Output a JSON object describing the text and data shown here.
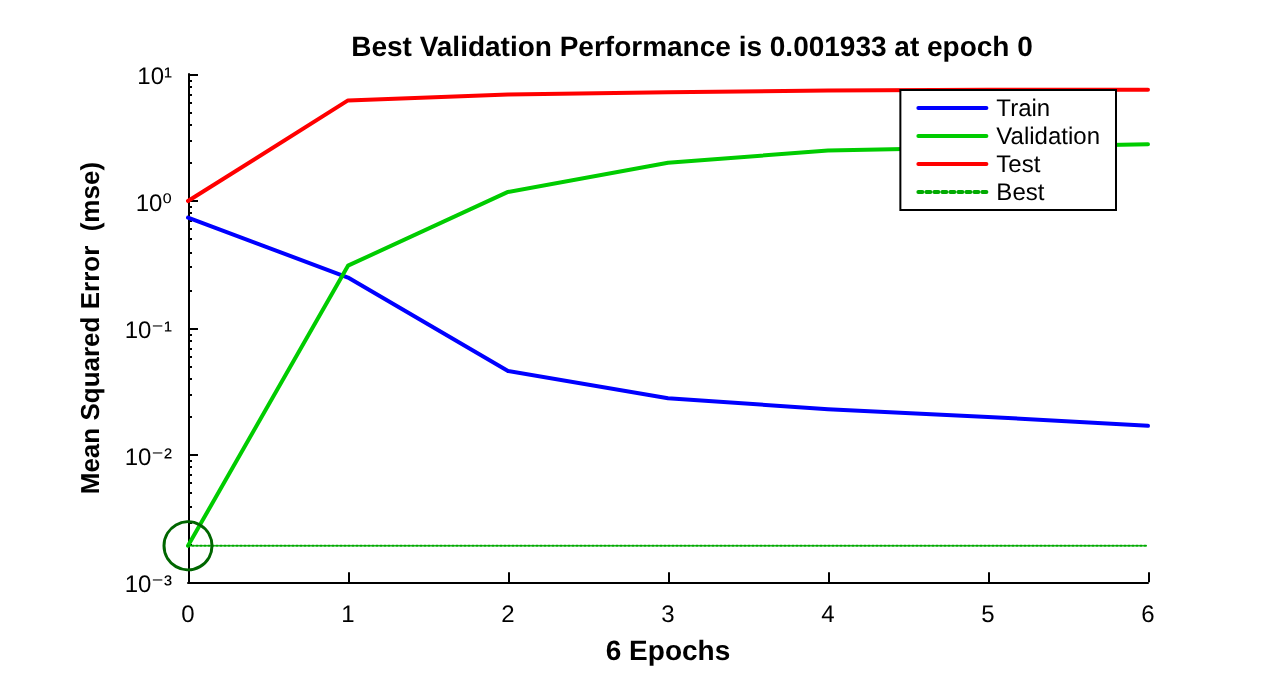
{
  "chart_data": {
    "type": "line",
    "title": "Best Validation Performance is 0.001933 at epoch 0",
    "xlabel": "6 Epochs",
    "ylabel": "Mean Squared Error  (mse)",
    "x": [
      0,
      1,
      2,
      3,
      4,
      5,
      6
    ],
    "series": [
      {
        "name": "Train",
        "color": "#0000ff",
        "values": [
          0.74,
          0.25,
          0.046,
          0.028,
          0.023,
          0.02,
          0.017
        ]
      },
      {
        "name": "Validation",
        "color": "#00cc00",
        "values": [
          0.001933,
          0.31,
          1.18,
          2.0,
          2.5,
          null,
          2.8
        ]
      },
      {
        "name": "Test",
        "color": "#ff0000",
        "values": [
          1.0,
          6.2,
          6.9,
          7.2,
          7.4,
          7.5,
          7.5
        ]
      },
      {
        "name": "Best",
        "color": "#00aa00",
        "line_style": "dotted",
        "values": [
          0.001933,
          0.001933,
          0.001933,
          0.001933,
          0.001933,
          0.001933,
          0.001933
        ]
      }
    ],
    "log": "y",
    "xlim": [
      0,
      6
    ],
    "xticks": [
      0,
      1,
      2,
      3,
      4,
      5,
      6
    ],
    "ylim": [
      0.001,
      10
    ],
    "yticks": [
      {
        "value": 0.001,
        "label": "10⁻³"
      },
      {
        "value": 0.01,
        "label": "10⁻²"
      },
      {
        "value": 0.1,
        "label": "10⁻¹"
      },
      {
        "value": 1,
        "label": "10⁰"
      },
      {
        "value": 10,
        "label": "10¹"
      }
    ],
    "grid": false,
    "legend": "top right",
    "marker": "none",
    "line_style": "solid"
  }
}
